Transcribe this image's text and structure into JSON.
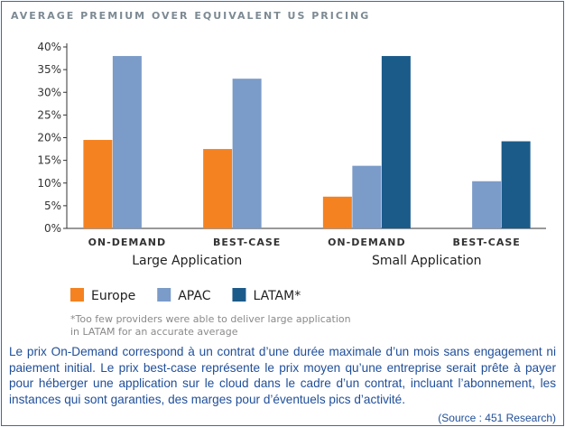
{
  "chart_data": {
    "type": "bar",
    "title": "AVERAGE PREMIUM OVER EQUIVALENT US PRICING",
    "categories": [
      "ON-DEMAND",
      "BEST-CASE",
      "ON-DEMAND",
      "BEST-CASE"
    ],
    "groups": [
      {
        "label": "Large Application",
        "categories": [
          0,
          1
        ]
      },
      {
        "label": "Small Application",
        "categories": [
          2,
          3
        ]
      }
    ],
    "series": [
      {
        "name": "Europe",
        "color": "#f58220",
        "values": [
          19.5,
          17.5,
          7,
          null
        ]
      },
      {
        "name": "APAC",
        "color": "#7b9bc8",
        "values": [
          38,
          33,
          13.8,
          10.4
        ]
      },
      {
        "name": "LATAM*",
        "color": "#1b5b8a",
        "values": [
          null,
          null,
          38,
          19.2
        ]
      }
    ],
    "ylim": [
      0,
      40
    ],
    "yticks": [
      "0%",
      "5%",
      "10%",
      "15%",
      "20%",
      "25%",
      "30%",
      "35%",
      "40%"
    ],
    "grid": false,
    "legend": "bottom",
    "footnote_lines": [
      "*Too few providers were able to deliver large application",
      "in LATAM for an accurate average"
    ]
  },
  "caption": "Le prix On-Demand correspond à un contrat d’une durée maximale d’un mois sans engagement ni paiement initial. Le prix best-case représente le prix moyen qu’une entreprise serait prête à payer pour héberger une application sur le cloud dans le cadre d’un contrat, incluant l’abonnement, les instances qui sont garanties, des marges pour d’éventuels pics d’activité.",
  "source": "(Source : 451 Research)"
}
